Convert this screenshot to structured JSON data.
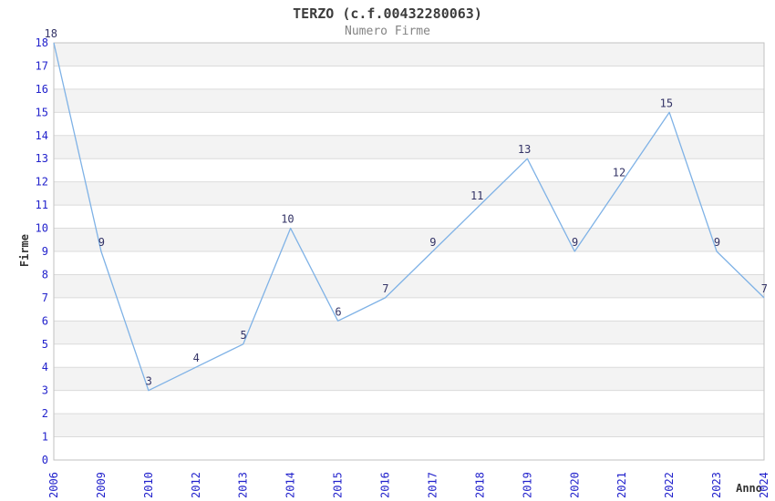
{
  "chart": {
    "title": "TERZO (c.f.00432280063)",
    "subtitle": "Numero Firme",
    "ylabel": "Firme",
    "xlabel": "Anno"
  },
  "chart_data": {
    "type": "line",
    "title": "TERZO (c.f.00432280063)",
    "subtitle": "Numero Firme",
    "xlabel": "Anno",
    "ylabel": "Firme",
    "categories": [
      "2006",
      "2009",
      "2010",
      "2012",
      "2013",
      "2014",
      "2015",
      "2016",
      "2017",
      "2018",
      "2019",
      "2020",
      "2021",
      "2022",
      "2023",
      "2024"
    ],
    "values": [
      18,
      9,
      3,
      4,
      5,
      10,
      6,
      7,
      9,
      11,
      13,
      9,
      12,
      15,
      9,
      7
    ],
    "ylim": [
      0,
      18
    ],
    "ytick_step": 1,
    "grid": true,
    "point_labels_visible": true,
    "legend": "none",
    "band_pattern": "gray band between each odd and next even y value",
    "colors": {
      "line": "#7fb2e6",
      "tick_label": "#2222cc",
      "point_label": "#333366",
      "band": "#f3f3f3",
      "gridline": "#dbdbdb",
      "border": "#c2c2c2",
      "title": "#3c3c3c",
      "subtitle": "#848484",
      "axis_title": "#333333",
      "background": "#ffffff"
    }
  }
}
